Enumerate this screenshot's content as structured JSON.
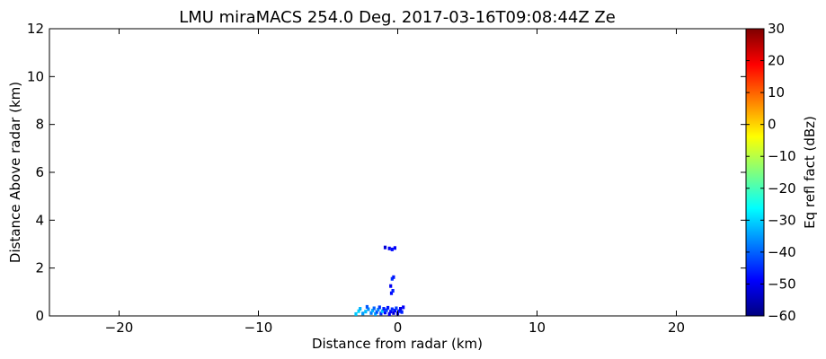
{
  "chart_data": {
    "type": "heatmap",
    "title": "LMU miraMACS 254.0 Deg. 2017-03-16T09:08:44Z  Ze",
    "xlabel": "Distance from radar (km)",
    "ylabel": "Distance Above radar  (km)",
    "xlim": [
      -25,
      25
    ],
    "ylim": [
      0,
      12
    ],
    "x_ticks": [
      -20,
      -10,
      0,
      10,
      20
    ],
    "x_tick_labels": [
      "−20",
      "−10",
      "0",
      "10",
      "20"
    ],
    "y_ticks": [
      0,
      2,
      4,
      6,
      8,
      10,
      12
    ],
    "y_tick_labels": [
      "0",
      "2",
      "4",
      "6",
      "8",
      "10",
      "12"
    ],
    "grid": false,
    "colorbar": {
      "label": "Eq refl fact (dBz)",
      "range": [
        -60,
        30
      ],
      "ticks": [
        -60,
        -50,
        -40,
        -30,
        -20,
        -10,
        0,
        10,
        20,
        30
      ],
      "tick_labels": [
        "−60",
        "−50",
        "−40",
        "−30",
        "−20",
        "−10",
        "0",
        "10",
        "20",
        "30"
      ],
      "colormap": "jet",
      "colormap_stops": [
        "#00007f",
        "#0000ff",
        "#007fff",
        "#00ffff",
        "#7fff7f",
        "#ffff00",
        "#ff7f00",
        "#ff0000",
        "#7f0000"
      ]
    },
    "echo_cells": [
      {
        "x": -2.5,
        "y": 0.1,
        "dbz": -35
      },
      {
        "x": -2.3,
        "y": 0.18,
        "dbz": -32
      },
      {
        "x": -2.1,
        "y": 0.28,
        "dbz": -36
      },
      {
        "x": -1.9,
        "y": 0.12,
        "dbz": -38
      },
      {
        "x": -1.8,
        "y": 0.22,
        "dbz": -33
      },
      {
        "x": -1.7,
        "y": 0.32,
        "dbz": -40
      },
      {
        "x": -1.6,
        "y": 0.08,
        "dbz": -34
      },
      {
        "x": -1.5,
        "y": 0.16,
        "dbz": -42
      },
      {
        "x": -1.4,
        "y": 0.26,
        "dbz": -37
      },
      {
        "x": -1.3,
        "y": 0.36,
        "dbz": -44
      },
      {
        "x": -1.2,
        "y": 0.1,
        "dbz": -45
      },
      {
        "x": -1.1,
        "y": 0.2,
        "dbz": -31
      },
      {
        "x": -1.0,
        "y": 0.3,
        "dbz": -46
      },
      {
        "x": -0.9,
        "y": 0.14,
        "dbz": -48
      },
      {
        "x": -0.8,
        "y": 0.24,
        "dbz": -43
      },
      {
        "x": -0.7,
        "y": 0.34,
        "dbz": -47
      },
      {
        "x": -0.6,
        "y": 0.08,
        "dbz": -50
      },
      {
        "x": -0.5,
        "y": 0.18,
        "dbz": -49
      },
      {
        "x": -0.4,
        "y": 0.28,
        "dbz": -45
      },
      {
        "x": -0.3,
        "y": 0.12,
        "dbz": -52
      },
      {
        "x": -0.2,
        "y": 0.22,
        "dbz": -48
      },
      {
        "x": -0.1,
        "y": 0.32,
        "dbz": -44
      },
      {
        "x": 0.0,
        "y": 0.1,
        "dbz": -50
      },
      {
        "x": 0.1,
        "y": 0.2,
        "dbz": -47
      },
      {
        "x": 0.2,
        "y": 0.3,
        "dbz": -51
      },
      {
        "x": 0.3,
        "y": 0.16,
        "dbz": -46
      },
      {
        "x": 0.4,
        "y": 0.36,
        "dbz": -49
      },
      {
        "x": -3.0,
        "y": 0.08,
        "dbz": -31
      },
      {
        "x": -2.8,
        "y": 0.2,
        "dbz": -30
      },
      {
        "x": -2.7,
        "y": 0.3,
        "dbz": -33
      },
      {
        "x": -2.2,
        "y": 0.38,
        "dbz": -41
      },
      {
        "x": -0.45,
        "y": 0.95,
        "dbz": -48
      },
      {
        "x": -0.35,
        "y": 1.05,
        "dbz": -46
      },
      {
        "x": -0.5,
        "y": 1.25,
        "dbz": -50
      },
      {
        "x": -0.4,
        "y": 1.55,
        "dbz": -44
      },
      {
        "x": -0.3,
        "y": 1.62,
        "dbz": -47
      },
      {
        "x": -0.9,
        "y": 2.86,
        "dbz": -52
      },
      {
        "x": -0.6,
        "y": 2.82,
        "dbz": -50
      },
      {
        "x": -0.4,
        "y": 2.78,
        "dbz": -48
      },
      {
        "x": -0.2,
        "y": 2.84,
        "dbz": -49
      }
    ]
  }
}
